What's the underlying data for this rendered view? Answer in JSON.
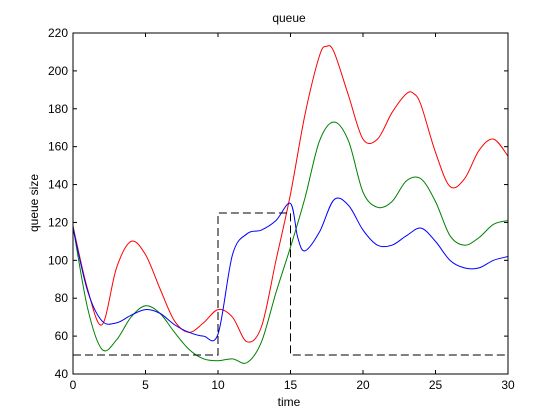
{
  "chart_data": {
    "type": "line",
    "title": "queue",
    "xlabel": "time",
    "ylabel": "queue size",
    "xlim": [
      0,
      30
    ],
    "ylim": [
      40,
      220
    ],
    "grid": false,
    "xticks": [
      0,
      5,
      10,
      15,
      20,
      25,
      30
    ],
    "yticks": [
      40,
      60,
      80,
      100,
      120,
      140,
      160,
      180,
      200,
      220
    ],
    "series": [
      {
        "color": "#ff0000",
        "style": "solid",
        "x": [
          0,
          1,
          2,
          3,
          4,
          5,
          6,
          7,
          8,
          9,
          10,
          11,
          12,
          13,
          14,
          15,
          16,
          17,
          17.5,
          18,
          19,
          20,
          21,
          22,
          23,
          23.5,
          24,
          25,
          26,
          27,
          28,
          29,
          30
        ],
        "values": [
          118,
          85,
          66,
          96,
          110,
          103,
          85,
          68,
          62,
          67,
          74,
          70,
          57,
          65,
          100,
          135,
          177,
          208,
          213,
          210,
          187,
          164,
          164,
          178,
          188,
          188,
          182,
          157,
          139,
          143,
          158,
          164,
          155
        ]
      },
      {
        "color": "#008000",
        "style": "solid",
        "x": [
          0,
          1,
          2,
          3,
          4,
          5,
          6,
          7,
          8,
          9,
          10,
          11,
          12,
          13,
          14,
          15,
          16,
          17,
          18,
          19,
          20,
          21,
          22,
          23,
          24,
          25,
          26,
          27,
          28,
          29,
          30
        ],
        "values": [
          118,
          75,
          53,
          58,
          70,
          76,
          72,
          62,
          53,
          48,
          47,
          48,
          46,
          57,
          83,
          107,
          133,
          163,
          173,
          163,
          136,
          128,
          131,
          142,
          143,
          131,
          113,
          108,
          112,
          119,
          121
        ]
      },
      {
        "color": "#0000ff",
        "style": "solid",
        "x": [
          0,
          1,
          2,
          3,
          4,
          5,
          6,
          7,
          8,
          9,
          10,
          11,
          12,
          13,
          14,
          15,
          15.5,
          16,
          17,
          18,
          19,
          20,
          21,
          22,
          23,
          24,
          25,
          26,
          27,
          28,
          29,
          30
        ],
        "values": [
          117,
          84,
          68,
          67,
          71,
          74,
          72,
          66,
          62,
          60,
          61,
          103,
          114,
          116,
          121,
          130,
          112,
          105,
          115,
          132,
          129,
          116,
          108,
          108,
          113,
          117,
          110,
          100,
          96,
          96,
          100,
          102
        ]
      },
      {
        "color": "#000000",
        "style": "dashed",
        "x": [
          0,
          10,
          10,
          15,
          15,
          30
        ],
        "values": [
          50,
          50,
          125,
          125,
          50,
          50
        ]
      }
    ]
  }
}
